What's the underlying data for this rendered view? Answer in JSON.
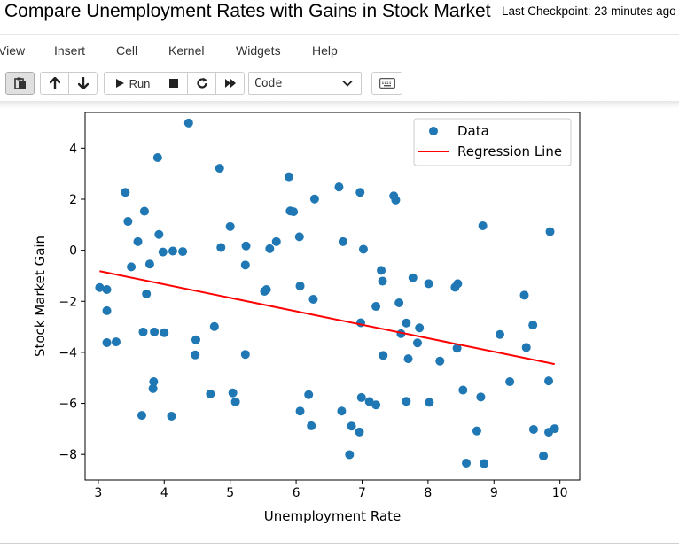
{
  "notebook": {
    "title": "Compare Unemployment Rates with Gains in Stock Market",
    "checkpoint": "Last Checkpoint: 23 minutes ago"
  },
  "menu": [
    "View",
    "Insert",
    "Cell",
    "Kernel",
    "Widgets",
    "Help"
  ],
  "toolbar": {
    "run_label": "Run",
    "cell_type": "Code"
  },
  "icons": {
    "paste": "paste-icon",
    "up": "arrow-up-icon",
    "down": "arrow-down-icon",
    "run": "play-icon",
    "stop": "stop-icon",
    "restart": "restart-icon",
    "fast_forward": "fast-forward-icon",
    "keyboard": "keyboard-icon",
    "chevron": "chevron-down-icon"
  },
  "chart_data": {
    "type": "scatter",
    "xlabel": "Unemployment Rate",
    "ylabel": "Stock Market Gain",
    "xlim": [
      2.8,
      10.3
    ],
    "ylim": [
      -9.0,
      5.4
    ],
    "xticks": [
      3,
      4,
      5,
      6,
      7,
      8,
      9,
      10
    ],
    "yticks": [
      -8,
      -6,
      -4,
      -2,
      0,
      2,
      4
    ],
    "grid": false,
    "legend": {
      "position": "top-right",
      "entries": [
        "Data",
        "Regression Line"
      ]
    },
    "colors": {
      "data": "#1f77b4",
      "line": "#ff0000"
    },
    "series": [
      {
        "name": "Data",
        "points": [
          [
            3.02,
            -1.46
          ],
          [
            3.13,
            -1.54
          ],
          [
            3.13,
            -2.37
          ],
          [
            3.13,
            -3.62
          ],
          [
            3.27,
            -3.59
          ],
          [
            3.41,
            2.27
          ],
          [
            3.45,
            1.13
          ],
          [
            3.5,
            -0.65
          ],
          [
            3.6,
            0.34
          ],
          [
            3.66,
            -6.47
          ],
          [
            3.68,
            -3.2
          ],
          [
            3.7,
            1.53
          ],
          [
            3.73,
            -1.71
          ],
          [
            3.78,
            -0.54
          ],
          [
            3.83,
            -5.42
          ],
          [
            3.84,
            -5.15
          ],
          [
            3.85,
            -3.2
          ],
          [
            3.9,
            3.63
          ],
          [
            3.92,
            0.62
          ],
          [
            3.98,
            -0.07
          ],
          [
            4.0,
            -3.23
          ],
          [
            4.11,
            -6.5
          ],
          [
            4.13,
            -0.03
          ],
          [
            4.28,
            -0.05
          ],
          [
            4.37,
            4.99
          ],
          [
            4.47,
            -4.1
          ],
          [
            4.48,
            -3.51
          ],
          [
            4.7,
            -5.63
          ],
          [
            4.76,
            -2.99
          ],
          [
            4.84,
            3.21
          ],
          [
            4.86,
            0.11
          ],
          [
            5.0,
            0.93
          ],
          [
            5.04,
            -5.59
          ],
          [
            5.08,
            -5.94
          ],
          [
            5.23,
            -0.58
          ],
          [
            5.23,
            -4.08
          ],
          [
            5.24,
            0.17
          ],
          [
            5.52,
            -1.61
          ],
          [
            5.55,
            -1.54
          ],
          [
            5.6,
            0.06
          ],
          [
            5.7,
            0.34
          ],
          [
            5.89,
            2.88
          ],
          [
            5.91,
            1.54
          ],
          [
            5.96,
            1.51
          ],
          [
            6.05,
            0.53
          ],
          [
            6.06,
            -1.4
          ],
          [
            6.06,
            -6.3
          ],
          [
            6.19,
            -5.66
          ],
          [
            6.23,
            -6.88
          ],
          [
            6.26,
            -1.92
          ],
          [
            6.28,
            2.01
          ],
          [
            6.65,
            2.48
          ],
          [
            6.69,
            -6.3
          ],
          [
            6.71,
            0.34
          ],
          [
            6.81,
            -8.01
          ],
          [
            6.84,
            -6.89
          ],
          [
            6.96,
            -7.12
          ],
          [
            6.97,
            2.27
          ],
          [
            6.98,
            -2.84
          ],
          [
            6.99,
            -5.77
          ],
          [
            7.02,
            0.04
          ],
          [
            7.11,
            -5.93
          ],
          [
            7.21,
            -6.06
          ],
          [
            7.21,
            -2.2
          ],
          [
            7.29,
            -0.79
          ],
          [
            7.31,
            -1.21
          ],
          [
            7.32,
            -4.12
          ],
          [
            7.48,
            2.13
          ],
          [
            7.51,
            1.97
          ],
          [
            7.56,
            -2.06
          ],
          [
            7.59,
            -3.27
          ],
          [
            7.67,
            -5.92
          ],
          [
            7.67,
            -2.85
          ],
          [
            7.7,
            -4.25
          ],
          [
            7.77,
            -1.08
          ],
          [
            7.84,
            -3.63
          ],
          [
            7.87,
            -3.04
          ],
          [
            8.01,
            -1.31
          ],
          [
            8.02,
            -5.96
          ],
          [
            8.18,
            -4.34
          ],
          [
            8.41,
            -1.45
          ],
          [
            8.44,
            -3.84
          ],
          [
            8.45,
            -1.31
          ],
          [
            8.53,
            -5.48
          ],
          [
            8.58,
            -8.34
          ],
          [
            8.74,
            -7.08
          ],
          [
            8.8,
            -5.75
          ],
          [
            8.83,
            0.96
          ],
          [
            8.85,
            -8.36
          ],
          [
            9.09,
            -3.3
          ],
          [
            9.24,
            -5.15
          ],
          [
            9.46,
            -1.76
          ],
          [
            9.49,
            -3.81
          ],
          [
            9.59,
            -2.93
          ],
          [
            9.6,
            -7.02
          ],
          [
            9.75,
            -8.06
          ],
          [
            9.83,
            -7.13
          ],
          [
            9.83,
            -5.12
          ],
          [
            9.85,
            0.73
          ],
          [
            9.92,
            -6.99
          ]
        ]
      },
      {
        "name": "Regression Line",
        "line": [
          [
            3.02,
            -0.82
          ],
          [
            9.92,
            -4.46
          ]
        ]
      }
    ]
  }
}
